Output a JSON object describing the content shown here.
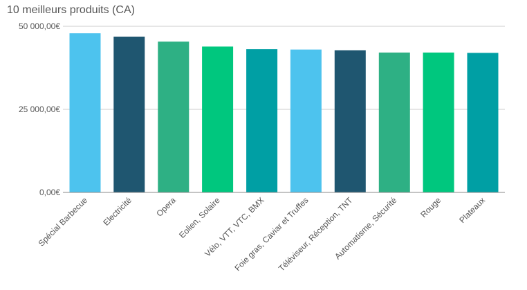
{
  "chart_data": {
    "type": "bar",
    "title": "10 meilleurs produits (CA)",
    "categories": [
      "Spécial Barbecue",
      "Electricité",
      "Opera",
      "Eolien, Solaire",
      "Vélo, VTT, VTC, BMX",
      "Foie gras, Caviar et Truffes",
      "Téléviseur, Réception, TNT",
      "Automatisme, Sécurité",
      "Rouge",
      "Plateaux"
    ],
    "values": [
      47900,
      46900,
      45400,
      43900,
      43100,
      43000,
      42800,
      42100,
      42100,
      42000
    ],
    "ylim": [
      0,
      50000
    ],
    "yticks": [
      0,
      25000,
      50000
    ],
    "ytick_labels": [
      "0,00€",
      "25 000,00€",
      "50 000,00€"
    ],
    "grid": true,
    "colors": [
      "#4dc3ee",
      "#1f5670",
      "#2eb084",
      "#00c77e",
      "#009fa4",
      "#4dc3ee",
      "#1f5670",
      "#2eb084",
      "#00c77e",
      "#009fa4"
    ],
    "gridline_color": "#cccccc",
    "axis_color": "#888888"
  }
}
